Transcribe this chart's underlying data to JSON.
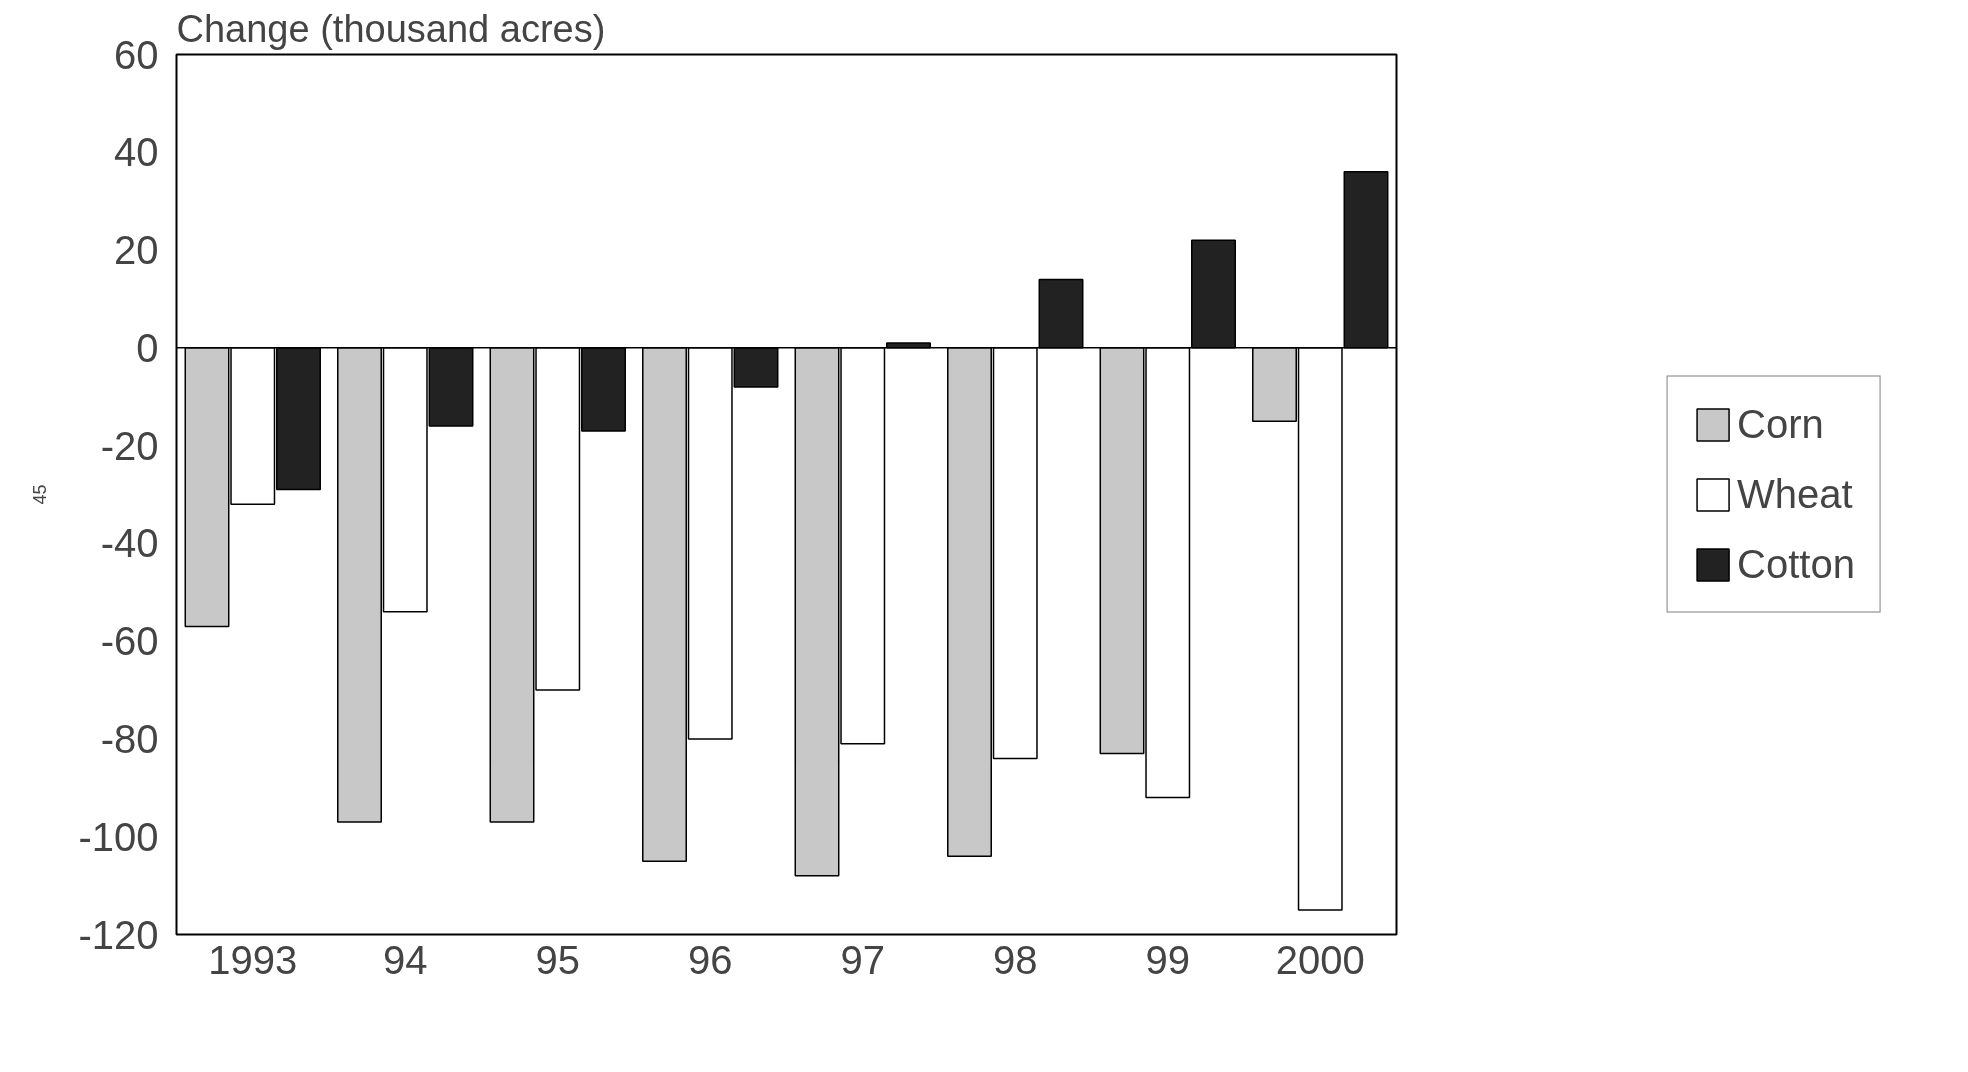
{
  "chart_data": {
    "type": "bar",
    "ylabel": "Change (thousand acres)",
    "categories": [
      "1993",
      "94",
      "95",
      "96",
      "97",
      "98",
      "99",
      "2000"
    ],
    "series": [
      {
        "name": "Corn",
        "color": "#c8c8c8",
        "values": [
          -57,
          -97,
          -97,
          -105,
          -108,
          -104,
          -83,
          -15
        ]
      },
      {
        "name": "Wheat",
        "color": "#ffffff",
        "values": [
          -32,
          -54,
          -70,
          -80,
          -81,
          -84,
          -92,
          -115
        ]
      },
      {
        "name": "Cotton",
        "color": "#222222",
        "values": [
          -29,
          -16,
          -17,
          -8,
          1,
          14,
          22,
          36
        ]
      }
    ],
    "ylim": [
      -120,
      60
    ],
    "yticks": [
      -120,
      -100,
      -80,
      -60,
      -40,
      -20,
      0,
      20,
      40,
      60
    ],
    "grid": false,
    "legend": "right",
    "ref_lines": [
      {
        "axis": "y",
        "value": 0,
        "color": "#000000"
      }
    ],
    "annotations": [
      "45"
    ]
  }
}
